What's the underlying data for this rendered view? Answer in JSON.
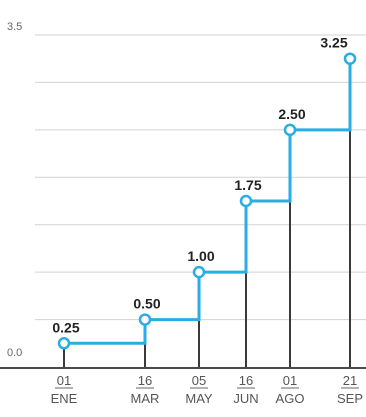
{
  "chart_data": {
    "type": "line",
    "title": "",
    "xlabel": "",
    "ylabel": "",
    "ylim": [
      0,
      3.5
    ],
    "y_ticks": [
      "3.5",
      "0.0"
    ],
    "grid": true,
    "x": [
      {
        "day": "01",
        "month": "ENE"
      },
      {
        "day": "16",
        "month": "MAR"
      },
      {
        "day": "05",
        "month": "MAY"
      },
      {
        "day": "16",
        "month": "JUN"
      },
      {
        "day": "01",
        "month": "AGO"
      },
      {
        "day": "21",
        "month": "SEP"
      }
    ],
    "values": [
      0.25,
      0.5,
      1.0,
      1.75,
      2.5,
      3.25
    ],
    "data_labels": [
      "0.25",
      "0.50",
      "1.00",
      "1.75",
      "2.50",
      "3.25"
    ],
    "colors": {
      "line": "#29aee3",
      "bars": "#3a3a3a",
      "grid": "#d2d2d2",
      "baseline": "#4a4a4a"
    }
  }
}
